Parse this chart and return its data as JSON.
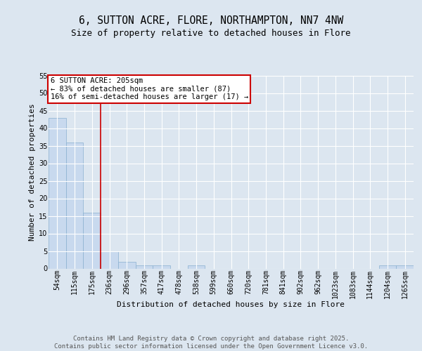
{
  "title1": "6, SUTTON ACRE, FLORE, NORTHAMPTON, NN7 4NW",
  "title2": "Size of property relative to detached houses in Flore",
  "xlabel": "Distribution of detached houses by size in Flore",
  "ylabel": "Number of detached properties",
  "bar_labels": [
    "54sqm",
    "115sqm",
    "175sqm",
    "236sqm",
    "296sqm",
    "357sqm",
    "417sqm",
    "478sqm",
    "538sqm",
    "599sqm",
    "660sqm",
    "720sqm",
    "781sqm",
    "841sqm",
    "902sqm",
    "962sqm",
    "1023sqm",
    "1083sqm",
    "1144sqm",
    "1204sqm",
    "1265sqm"
  ],
  "bar_values": [
    43,
    36,
    16,
    5,
    2,
    1,
    1,
    0,
    1,
    0,
    0,
    0,
    0,
    0,
    0,
    0,
    0,
    0,
    0,
    1,
    1
  ],
  "bar_color": "#c8d9ee",
  "bar_edge_color": "#8ab0d0",
  "annotation_box_text": "6 SUTTON ACRE: 205sqm\n← 83% of detached houses are smaller (87)\n16% of semi-detached houses are larger (17) →",
  "annotation_box_color": "#ffffff",
  "annotation_box_edge_color": "#cc0000",
  "vline_color": "#cc0000",
  "ylim": [
    0,
    55
  ],
  "yticks": [
    0,
    5,
    10,
    15,
    20,
    25,
    30,
    35,
    40,
    45,
    50,
    55
  ],
  "footer_text": "Contains HM Land Registry data © Crown copyright and database right 2025.\nContains public sector information licensed under the Open Government Licence v3.0.",
  "bg_color": "#dce6f0",
  "plot_bg_color": "#dce6f0",
  "grid_color": "#ffffff",
  "title_fontsize": 10.5,
  "subtitle_fontsize": 9,
  "axis_label_fontsize": 8,
  "tick_fontsize": 7,
  "footer_fontsize": 6.5,
  "annot_fontsize": 7.5
}
